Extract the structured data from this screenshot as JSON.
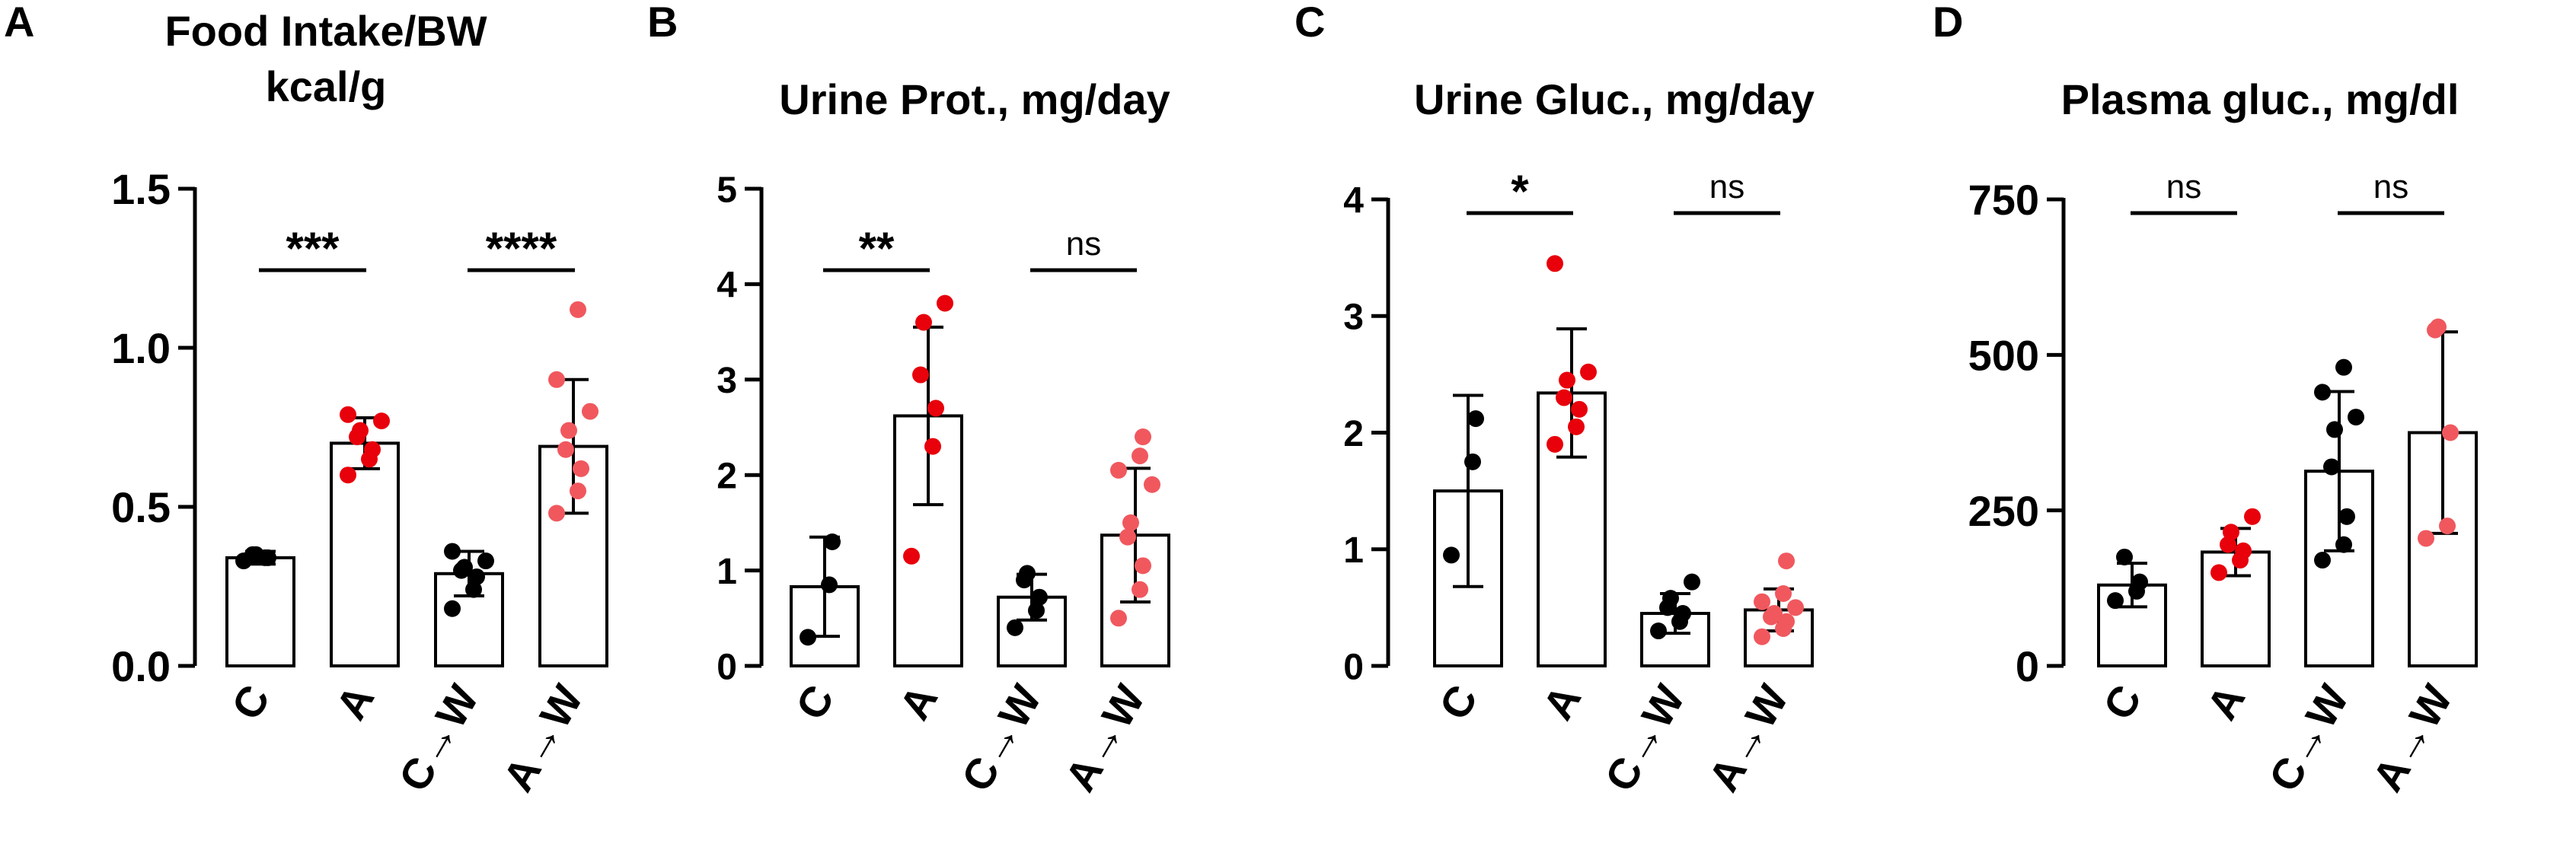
{
  "figure": {
    "colors": {
      "control": "#000000",
      "treated": "#e8000b",
      "treated_light": "#f0585e",
      "axis": "#000000"
    }
  },
  "chart_data": [
    {
      "type": "bar",
      "panel_label": "A",
      "title": [
        "Food Intake/BW",
        "kcal/g"
      ],
      "categories": [
        "C",
        "A",
        "C→W",
        "A→W"
      ],
      "ylim": [
        0,
        1.5
      ],
      "yticks": [
        "0.0",
        "0.5",
        "1.0",
        "1.5"
      ],
      "ytick_values": [
        0,
        0.5,
        1.0,
        1.5
      ],
      "means": [
        0.34,
        0.7,
        0.29,
        0.69
      ],
      "sd": [
        0.02,
        0.08,
        0.07,
        0.21
      ],
      "points": [
        [
          0.33,
          0.34,
          0.34,
          0.35,
          0.35
        ],
        [
          0.6,
          0.65,
          0.68,
          0.72,
          0.74,
          0.77,
          0.79
        ],
        [
          0.18,
          0.24,
          0.28,
          0.3,
          0.31,
          0.33,
          0.36
        ],
        [
          0.48,
          0.55,
          0.62,
          0.68,
          0.74,
          0.8,
          0.9,
          1.12
        ]
      ],
      "point_colors": [
        "control",
        "treated",
        "control",
        "treated_light"
      ],
      "significance": [
        {
          "pair": [
            0,
            1
          ],
          "label": "***"
        },
        {
          "pair": [
            2,
            3
          ],
          "label": "****"
        }
      ]
    },
    {
      "type": "bar",
      "panel_label": "B",
      "title": [
        "Urine Prot., mg/day"
      ],
      "categories": [
        "C",
        "A",
        "C→W",
        "A→W"
      ],
      "ylim": [
        0,
        5
      ],
      "yticks": [
        "0",
        "1",
        "2",
        "3",
        "4",
        "5"
      ],
      "ytick_values": [
        0,
        1,
        2,
        3,
        4,
        5
      ],
      "means": [
        0.83,
        2.62,
        0.72,
        1.37
      ],
      "sd": [
        0.52,
        0.93,
        0.24,
        0.7
      ],
      "points": [
        [
          0.3,
          0.85,
          1.3
        ],
        [
          1.15,
          2.3,
          2.7,
          3.05,
          3.6,
          3.8
        ],
        [
          0.4,
          0.58,
          0.72,
          0.9,
          0.97
        ],
        [
          0.5,
          0.8,
          1.05,
          1.35,
          1.5,
          1.9,
          2.05,
          2.2,
          2.4
        ]
      ],
      "point_colors": [
        "control",
        "treated",
        "control",
        "treated_light"
      ],
      "significance": [
        {
          "pair": [
            0,
            1
          ],
          "label": "**"
        },
        {
          "pair": [
            2,
            3
          ],
          "label": "ns"
        }
      ]
    },
    {
      "type": "bar",
      "panel_label": "C",
      "title": [
        "Urine Gluc., mg/day"
      ],
      "categories": [
        "C",
        "A",
        "C→W",
        "A→W"
      ],
      "ylim": [
        0,
        4
      ],
      "yticks": [
        "0",
        "1",
        "2",
        "3",
        "4"
      ],
      "ytick_values": [
        0,
        1,
        2,
        3,
        4
      ],
      "means": [
        1.5,
        2.34,
        0.45,
        0.48
      ],
      "sd": [
        0.82,
        0.55,
        0.17,
        0.18
      ],
      "points": [
        [
          0.95,
          1.75,
          2.12
        ],
        [
          1.9,
          2.05,
          2.2,
          2.3,
          2.45,
          2.52,
          3.45
        ],
        [
          0.3,
          0.38,
          0.45,
          0.5,
          0.58,
          0.72
        ],
        [
          0.25,
          0.32,
          0.38,
          0.42,
          0.45,
          0.5,
          0.55,
          0.62,
          0.9
        ]
      ],
      "point_colors": [
        "control",
        "treated",
        "control",
        "treated_light"
      ],
      "significance": [
        {
          "pair": [
            0,
            1
          ],
          "label": "*"
        },
        {
          "pair": [
            2,
            3
          ],
          "label": "ns"
        }
      ]
    },
    {
      "type": "bar",
      "panel_label": "D",
      "title": [
        "Plasma gluc., mg/dl"
      ],
      "categories": [
        "C",
        "A",
        "C→W",
        "A→W"
      ],
      "ylim": [
        0,
        750
      ],
      "yticks": [
        "0",
        "250",
        "500",
        "750"
      ],
      "ytick_values": [
        0,
        250,
        500,
        750
      ],
      "means": [
        130,
        183,
        313,
        375
      ],
      "sd": [
        35,
        38,
        128,
        162
      ],
      "points": [
        [
          105,
          120,
          135,
          175
        ],
        [
          150,
          170,
          185,
          195,
          215,
          240
        ],
        [
          170,
          195,
          240,
          320,
          380,
          400,
          440,
          480
        ],
        [
          205,
          225,
          375,
          540,
          545
        ]
      ],
      "point_colors": [
        "control",
        "treated",
        "control",
        "treated_light"
      ],
      "significance": [
        {
          "pair": [
            0,
            1
          ],
          "label": "ns"
        },
        {
          "pair": [
            2,
            3
          ],
          "label": "ns"
        }
      ]
    }
  ]
}
